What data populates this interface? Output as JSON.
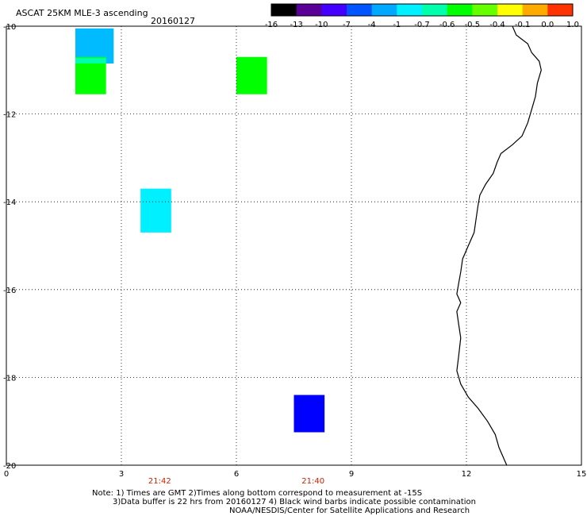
{
  "header": {
    "title": "ASCAT 25KM MLE-3 ascending",
    "date": "20160127"
  },
  "colorbar": {
    "labels": [
      "-16",
      "-13",
      "-10",
      "-7",
      "-4",
      "-1",
      "-0.7",
      "-0.6",
      "-0.5",
      "-0.4",
      "-0.1",
      "0.0",
      "1.0"
    ],
    "colors": [
      "#000000",
      "#5a0096",
      "#4400ff",
      "#0055ff",
      "#00a8ff",
      "#00f0ff",
      "#00ffaa",
      "#00ff00",
      "#66ff00",
      "#ffff00",
      "#ffaa00",
      "#ff3300"
    ]
  },
  "map": {
    "x_range": [
      0,
      15
    ],
    "y_range": [
      -20,
      -10
    ],
    "x_ticks": [
      "0",
      "3",
      "6",
      "9",
      "12",
      "15"
    ],
    "y_ticks": [
      "-10",
      "-12",
      "-14",
      "-16",
      "-18",
      "-20"
    ],
    "grid": true,
    "grid_style": "dotted",
    "times": [
      {
        "label": "21:42",
        "x": 4.0,
        "color": "#cc2200"
      },
      {
        "label": "21:40",
        "x": 8.0,
        "color": "#cc2200"
      }
    ],
    "cells": [
      {
        "x0": 1.8,
        "x1": 2.8,
        "y0": -10.05,
        "y1": -10.85,
        "color": "#00bbff"
      },
      {
        "x0": 1.8,
        "x1": 2.6,
        "y0": -10.7,
        "y1": -11.55,
        "color": "#00ff00"
      },
      {
        "x0": 1.8,
        "x1": 2.6,
        "y0": -10.72,
        "y1": -10.85,
        "color": "#00ffaa"
      },
      {
        "x0": 6.0,
        "x1": 6.8,
        "y0": -10.7,
        "y1": -11.55,
        "color": "#00ff00"
      },
      {
        "x0": 3.5,
        "x1": 4.3,
        "y0": -13.7,
        "y1": -14.7,
        "color": "#00f0ff"
      },
      {
        "x0": 7.5,
        "x1": 8.3,
        "y0": -18.4,
        "y1": -19.25,
        "color": "#0000ff"
      }
    ],
    "coastline": [
      [
        13.2,
        -10.0
      ],
      [
        13.3,
        -10.2
      ],
      [
        13.6,
        -10.4
      ],
      [
        13.7,
        -10.6
      ],
      [
        13.9,
        -10.8
      ],
      [
        13.95,
        -11.0
      ],
      [
        13.85,
        -11.3
      ],
      [
        13.8,
        -11.6
      ],
      [
        13.7,
        -11.9
      ],
      [
        13.6,
        -12.2
      ],
      [
        13.45,
        -12.5
      ],
      [
        13.2,
        -12.7
      ],
      [
        12.9,
        -12.9
      ],
      [
        12.8,
        -13.1
      ],
      [
        12.7,
        -13.35
      ],
      [
        12.5,
        -13.6
      ],
      [
        12.35,
        -13.85
      ],
      [
        12.3,
        -14.1
      ],
      [
        12.25,
        -14.4
      ],
      [
        12.2,
        -14.7
      ],
      [
        12.05,
        -15.0
      ],
      [
        11.9,
        -15.3
      ],
      [
        11.85,
        -15.6
      ],
      [
        11.8,
        -15.85
      ],
      [
        11.75,
        -16.1
      ],
      [
        11.85,
        -16.3
      ],
      [
        11.75,
        -16.5
      ],
      [
        11.8,
        -16.8
      ],
      [
        11.85,
        -17.1
      ],
      [
        11.8,
        -17.5
      ],
      [
        11.75,
        -17.85
      ],
      [
        11.85,
        -18.15
      ],
      [
        12.05,
        -18.45
      ],
      [
        12.3,
        -18.7
      ],
      [
        12.55,
        -19.0
      ],
      [
        12.75,
        -19.3
      ],
      [
        12.85,
        -19.6
      ],
      [
        13.05,
        -20.0
      ]
    ]
  },
  "notes": {
    "line1": "Note: 1) Times are GMT 2)Times along bottom correspond to measurement at -15S",
    "line2": "3)Data buffer is 22 hrs from 20160127 4) Black wind barbs indicate possible contamination",
    "line3": "NOAA/NESDIS/Center for Satellite Applications and Research"
  }
}
